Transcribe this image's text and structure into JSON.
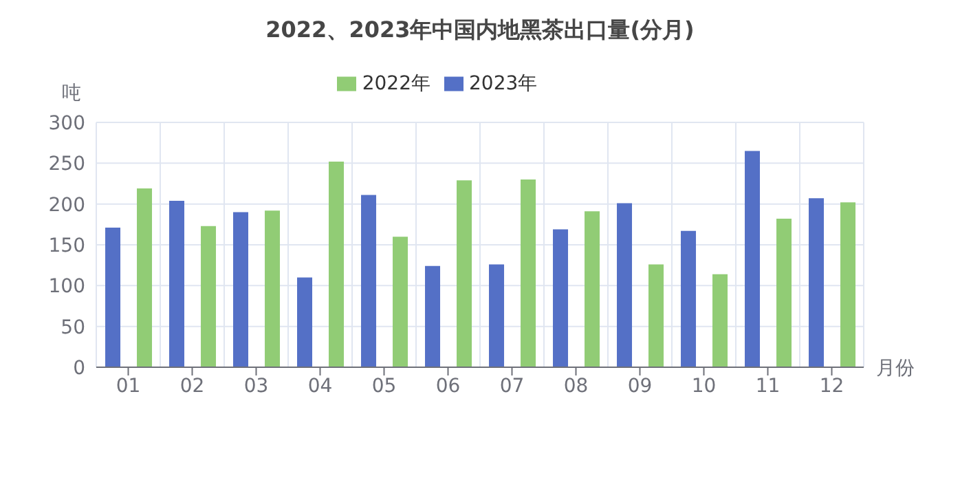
{
  "chart_data": {
    "type": "bar",
    "title": "2022、2023年中国内地黑茶出口量(分月)",
    "xlabel": "月份",
    "ylabel": "吨",
    "categories": [
      "01",
      "02",
      "03",
      "04",
      "05",
      "06",
      "07",
      "08",
      "09",
      "10",
      "11",
      "12"
    ],
    "series": [
      {
        "name": "2023年",
        "color": "#5470c6",
        "values": [
          171,
          204,
          190,
          110,
          211,
          124,
          126,
          169,
          201,
          167,
          265,
          207
        ]
      },
      {
        "name": "2022年",
        "color": "#91cc75",
        "values": [
          219,
          173,
          192,
          252,
          160,
          229,
          230,
          191,
          126,
          114,
          182,
          202
        ]
      }
    ],
    "ylim": [
      0,
      300
    ],
    "yticks": [
      0,
      50,
      100,
      150,
      200,
      250,
      300
    ],
    "grid": true,
    "legend": "top"
  }
}
